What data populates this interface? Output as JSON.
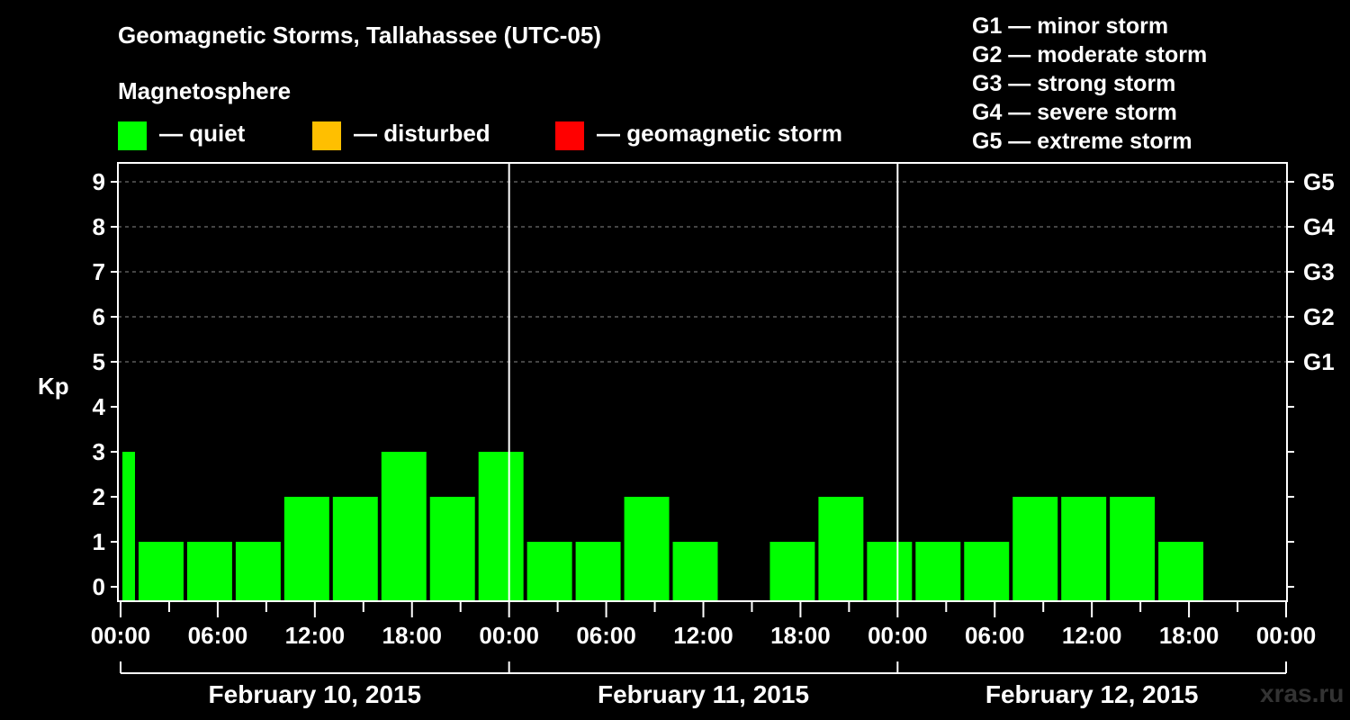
{
  "header": {
    "title": "Geomagnetic Storms, Tallahassee (UTC-05)",
    "subtitle": "Magnetosphere"
  },
  "legend": [
    {
      "color": "#00ff00",
      "label": "— quiet"
    },
    {
      "color": "#ffbf00",
      "label": "— disturbed"
    },
    {
      "color": "#ff0000",
      "label": "— geomagnetic storm"
    }
  ],
  "g_scale": [
    "G1 — minor storm",
    "G2 — moderate storm",
    "G3 — strong storm",
    "G4 — severe storm",
    "G5 — extreme storm"
  ],
  "watermark": "xras.ru",
  "chart_data": {
    "type": "bar",
    "title": "Geomagnetic Storms, Tallahassee (UTC-05)",
    "ylabel": "Kp",
    "ylim": [
      0,
      9
    ],
    "yticks": [
      "0",
      "1",
      "2",
      "3",
      "4",
      "5",
      "6",
      "7",
      "8",
      "9"
    ],
    "right_axis": [
      {
        "kp": 5,
        "label": "G1"
      },
      {
        "kp": 6,
        "label": "G2"
      },
      {
        "kp": 7,
        "label": "G3"
      },
      {
        "kp": 8,
        "label": "G4"
      },
      {
        "kp": 9,
        "label": "G5"
      }
    ],
    "x_start_hour": -1,
    "x_end_hour": 72,
    "xtick_labels": [
      "00:00",
      "06:00",
      "12:00",
      "18:00",
      "00:00",
      "06:00",
      "12:00",
      "18:00",
      "00:00",
      "06:00",
      "12:00",
      "18:00",
      "00:00"
    ],
    "days": [
      "February 10, 2015",
      "February 11, 2015",
      "February 12, 2015"
    ],
    "bar_color": "#00ff00",
    "bars": [
      {
        "start": 0,
        "end": 1,
        "kp": 3
      },
      {
        "start": 1,
        "end": 4,
        "kp": 1
      },
      {
        "start": 4,
        "end": 7,
        "kp": 1
      },
      {
        "start": 7,
        "end": 10,
        "kp": 1
      },
      {
        "start": 10,
        "end": 13,
        "kp": 2
      },
      {
        "start": 13,
        "end": 16,
        "kp": 2
      },
      {
        "start": 16,
        "end": 19,
        "kp": 3
      },
      {
        "start": 19,
        "end": 22,
        "kp": 2
      },
      {
        "start": 22,
        "end": 25,
        "kp": 3
      },
      {
        "start": 25,
        "end": 28,
        "kp": 1
      },
      {
        "start": 28,
        "end": 31,
        "kp": 1
      },
      {
        "start": 31,
        "end": 34,
        "kp": 2
      },
      {
        "start": 34,
        "end": 37,
        "kp": 1
      },
      {
        "start": 37,
        "end": 40,
        "kp": 0
      },
      {
        "start": 40,
        "end": 43,
        "kp": 1
      },
      {
        "start": 43,
        "end": 46,
        "kp": 2
      },
      {
        "start": 46,
        "end": 49,
        "kp": 1
      },
      {
        "start": 49,
        "end": 52,
        "kp": 1
      },
      {
        "start": 52,
        "end": 55,
        "kp": 1
      },
      {
        "start": 55,
        "end": 58,
        "kp": 2
      },
      {
        "start": 58,
        "end": 61,
        "kp": 2
      },
      {
        "start": 61,
        "end": 64,
        "kp": 2
      },
      {
        "start": 64,
        "end": 67,
        "kp": 1
      }
    ]
  }
}
